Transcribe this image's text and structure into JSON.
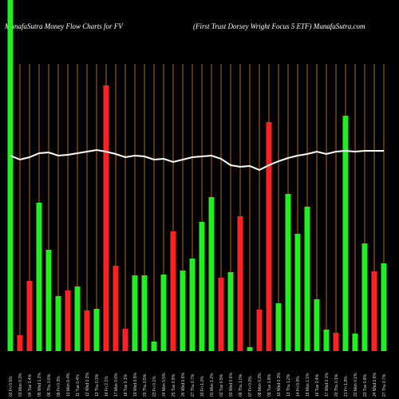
{
  "chart_data": {
    "type": "bar",
    "title": "MunafaSutra  Money Flow  Charts for FV",
    "subtitle": "(First Trust Dorsey Wright Focus 5 ETF) MunafaSutra.com",
    "categories": [
      "02 Fri 0.5%",
      "03 Mon 0.3%",
      "04 Tue 0.4%",
      "05 Wed 1.2%",
      "06 Thu 0.8%",
      "09 Fri 0.3%",
      "10 Mon 0.4%",
      "11 Tue 0.4%",
      "12 Wed 0.2%",
      "13 Thu 0.3%",
      "16 Fri 2.1%",
      "17 Mon 0.6%",
      "18 Tue 0.1%",
      "19 Wed 0.5%",
      "20 Thu 0.5%",
      "23 Fri 0.1%",
      "24 Mon 0.5%",
      "25 Tue 0.9%",
      "26 Wed 0.6%",
      "27 Thu 0.7%",
      "30 Fri 1.0%",
      "01 Mon 1.2%",
      "02 Tue 0.5%",
      "03 Wed 0.6%",
      "06 Thu 1.0%",
      "07 Fri 0.0%",
      "08 Mon 0.3%",
      "09 Tue 1.8%",
      "10 Wed 0.3%",
      "13 Thu 1.2%",
      "14 Fri 0.9%",
      "15 Mon 1.1%",
      "16 Tue 0.4%",
      "17 Wed 0.1%",
      "20 Thu 0.1%",
      "21 Fri 1.8%",
      "22 Mon 0.1%",
      "23 Tue 0.8%",
      "24 Wed 0.6%",
      "27 Thu 0.7%"
    ],
    "ylim": [
      0,
      440
    ],
    "grid": true,
    "grid_color": "#b8650f",
    "series": [
      {
        "type": "bar",
        "values": [
          440,
          20,
          88,
          186,
          127,
          69,
          76,
          81,
          51,
          53,
          333,
          107,
          28,
          95,
          95,
          12,
          96,
          150,
          101,
          116,
          162,
          193,
          92,
          99,
          169,
          5,
          52,
          287,
          60,
          197,
          147,
          181,
          65,
          27,
          23,
          295,
          22,
          135,
          100,
          110
        ],
        "colors": [
          "#22ee22",
          "#ff2222",
          "#ff2222",
          "#22ee22",
          "#22ee22",
          "#22ee22",
          "#ff2222",
          "#22ee22",
          "#ff2222",
          "#22ee22",
          "#ff2222",
          "#ff2222",
          "#ff2222",
          "#22ee22",
          "#22ee22",
          "#22ee22",
          "#22ee22",
          "#ff2222",
          "#22ee22",
          "#22ee22",
          "#22ee22",
          "#22ee22",
          "#ff2222",
          "#22ee22",
          "#ff2222",
          "#22ee22",
          "#ff2222",
          "#ff2222",
          "#22ee22",
          "#22ee22",
          "#22ee22",
          "#22ee22",
          "#22ee22",
          "#22ee22",
          "#ff2222",
          "#22ee22",
          "#22ee22",
          "#22ee22",
          "#ff2222",
          "#22ee22"
        ]
      },
      {
        "type": "line",
        "color": "#ffffff",
        "values": [
          245,
          240,
          243,
          248,
          249,
          245,
          246,
          248,
          250,
          252,
          250,
          247,
          243,
          245,
          244,
          240,
          241,
          237,
          240,
          243,
          244,
          245,
          241,
          233,
          231,
          232,
          227,
          233,
          238,
          242,
          245,
          247,
          250,
          247,
          250,
          251,
          250,
          251,
          251,
          251
        ]
      }
    ]
  }
}
